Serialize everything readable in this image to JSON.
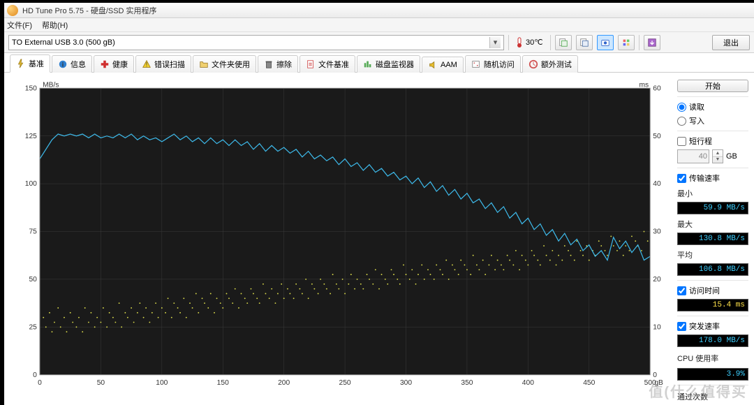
{
  "window": {
    "title": "HD Tune Pro 5.75 - 硬盘/SSD 实用程序"
  },
  "menu": {
    "file": "文件(F)",
    "help": "帮助(H)"
  },
  "toolbar": {
    "device": "TO External USB 3.0 (500 gB)",
    "temp_value": "30℃",
    "exit": "退出"
  },
  "tabs": [
    {
      "label": "基准",
      "icon": "bolt",
      "active": true
    },
    {
      "label": "信息",
      "icon": "info"
    },
    {
      "label": "健康",
      "icon": "plus"
    },
    {
      "label": "错误扫描",
      "icon": "warn"
    },
    {
      "label": "文件夹使用",
      "icon": "folder"
    },
    {
      "label": "擦除",
      "icon": "erase"
    },
    {
      "label": "文件基准",
      "icon": "filebench"
    },
    {
      "label": "磁盘监视器",
      "icon": "monitor"
    },
    {
      "label": "AAM",
      "icon": "speaker"
    },
    {
      "label": "随机访问",
      "icon": "random"
    },
    {
      "label": "额外测试",
      "icon": "extra"
    }
  ],
  "side": {
    "start": "开始",
    "read": "读取",
    "write": "写入",
    "short_stroke": "短行程",
    "stroke_value": "40",
    "stroke_unit": "GB",
    "transfer_rate": "传输速率",
    "min_label": "最小",
    "min_value": "59.9 MB/s",
    "max_label": "最大",
    "max_value": "130.8 MB/s",
    "avg_label": "平均",
    "avg_value": "106.8 MB/s",
    "access_label": "访问时间",
    "access_value": "15.4 ms",
    "burst_label": "突发速率",
    "burst_value": "178.0 MB/s",
    "cpu_label": "CPU 使用率",
    "cpu_value": "3.9%",
    "passes_label": "通过次数"
  },
  "chart": {
    "bg": "#1a1a1a",
    "grid": "#3a3a3a",
    "line_color": "#3db8e8",
    "scatter_color": "#d8d84a",
    "left_unit": "MB/s",
    "right_unit": "ms",
    "x_unit": "gB",
    "x_max": 500,
    "left_ticks": [
      0,
      25,
      50,
      75,
      100,
      125,
      150
    ],
    "right_ticks": [
      0,
      10,
      20,
      30,
      40,
      50,
      60
    ],
    "x_ticks": [
      0,
      50,
      100,
      150,
      200,
      250,
      300,
      350,
      400,
      450,
      500
    ],
    "line_y_range": [
      0,
      150
    ],
    "scatter_y_range": [
      0,
      60
    ],
    "line": [
      [
        0,
        113
      ],
      [
        5,
        118
      ],
      [
        10,
        123
      ],
      [
        15,
        126
      ],
      [
        20,
        125
      ],
      [
        25,
        126
      ],
      [
        30,
        125
      ],
      [
        35,
        126
      ],
      [
        40,
        124
      ],
      [
        45,
        126
      ],
      [
        50,
        124
      ],
      [
        55,
        125
      ],
      [
        60,
        124
      ],
      [
        65,
        126
      ],
      [
        70,
        124
      ],
      [
        75,
        126
      ],
      [
        80,
        123
      ],
      [
        85,
        125
      ],
      [
        90,
        123
      ],
      [
        95,
        124
      ],
      [
        100,
        122
      ],
      [
        105,
        124
      ],
      [
        110,
        126
      ],
      [
        115,
        123
      ],
      [
        120,
        125
      ],
      [
        125,
        122
      ],
      [
        130,
        124
      ],
      [
        135,
        121
      ],
      [
        140,
        124
      ],
      [
        145,
        121
      ],
      [
        150,
        123
      ],
      [
        155,
        120
      ],
      [
        160,
        123
      ],
      [
        165,
        120
      ],
      [
        170,
        122
      ],
      [
        175,
        118
      ],
      [
        180,
        121
      ],
      [
        185,
        117
      ],
      [
        190,
        120
      ],
      [
        195,
        117
      ],
      [
        200,
        119
      ],
      [
        205,
        116
      ],
      [
        210,
        118
      ],
      [
        215,
        114
      ],
      [
        220,
        117
      ],
      [
        225,
        113
      ],
      [
        230,
        115
      ],
      [
        235,
        112
      ],
      [
        240,
        114
      ],
      [
        245,
        110
      ],
      [
        250,
        113
      ],
      [
        255,
        109
      ],
      [
        260,
        111
      ],
      [
        265,
        107
      ],
      [
        270,
        110
      ],
      [
        275,
        106
      ],
      [
        280,
        108
      ],
      [
        285,
        104
      ],
      [
        290,
        106
      ],
      [
        295,
        102
      ],
      [
        300,
        104
      ],
      [
        305,
        100
      ],
      [
        310,
        103
      ],
      [
        315,
        98
      ],
      [
        320,
        101
      ],
      [
        325,
        96
      ],
      [
        330,
        99
      ],
      [
        335,
        94
      ],
      [
        340,
        97
      ],
      [
        345,
        92
      ],
      [
        350,
        95
      ],
      [
        355,
        90
      ],
      [
        360,
        92
      ],
      [
        365,
        87
      ],
      [
        370,
        90
      ],
      [
        375,
        85
      ],
      [
        380,
        88
      ],
      [
        385,
        82
      ],
      [
        390,
        85
      ],
      [
        395,
        79
      ],
      [
        400,
        82
      ],
      [
        405,
        76
      ],
      [
        410,
        79
      ],
      [
        415,
        73
      ],
      [
        420,
        76
      ],
      [
        425,
        70
      ],
      [
        430,
        74
      ],
      [
        435,
        68
      ],
      [
        440,
        71
      ],
      [
        445,
        65
      ],
      [
        450,
        68
      ],
      [
        455,
        62
      ],
      [
        460,
        65
      ],
      [
        465,
        60
      ],
      [
        470,
        72
      ],
      [
        475,
        66
      ],
      [
        480,
        70
      ],
      [
        485,
        64
      ],
      [
        490,
        68
      ],
      [
        495,
        60
      ],
      [
        500,
        62
      ]
    ],
    "scatter": [
      [
        3,
        12
      ],
      [
        5,
        10
      ],
      [
        8,
        13
      ],
      [
        10,
        9
      ],
      [
        12,
        11
      ],
      [
        15,
        14
      ],
      [
        17,
        10
      ],
      [
        20,
        12
      ],
      [
        22,
        9
      ],
      [
        25,
        13
      ],
      [
        27,
        11
      ],
      [
        30,
        10
      ],
      [
        32,
        12
      ],
      [
        35,
        9
      ],
      [
        37,
        14
      ],
      [
        40,
        11
      ],
      [
        42,
        13
      ],
      [
        45,
        10
      ],
      [
        47,
        12
      ],
      [
        50,
        11
      ],
      [
        52,
        14
      ],
      [
        55,
        10
      ],
      [
        57,
        13
      ],
      [
        60,
        12
      ],
      [
        62,
        11
      ],
      [
        65,
        15
      ],
      [
        67,
        10
      ],
      [
        70,
        13
      ],
      [
        72,
        12
      ],
      [
        75,
        14
      ],
      [
        77,
        11
      ],
      [
        80,
        13
      ],
      [
        82,
        15
      ],
      [
        85,
        12
      ],
      [
        87,
        14
      ],
      [
        90,
        11
      ],
      [
        92,
        13
      ],
      [
        95,
        15
      ],
      [
        97,
        12
      ],
      [
        100,
        14
      ],
      [
        103,
        13
      ],
      [
        105,
        16
      ],
      [
        108,
        12
      ],
      [
        110,
        15
      ],
      [
        113,
        14
      ],
      [
        115,
        13
      ],
      [
        118,
        16
      ],
      [
        120,
        12
      ],
      [
        123,
        15
      ],
      [
        125,
        14
      ],
      [
        128,
        17
      ],
      [
        130,
        13
      ],
      [
        133,
        16
      ],
      [
        135,
        15
      ],
      [
        138,
        14
      ],
      [
        140,
        17
      ],
      [
        143,
        13
      ],
      [
        145,
        16
      ],
      [
        148,
        15
      ],
      [
        150,
        14
      ],
      [
        153,
        17
      ],
      [
        155,
        16
      ],
      [
        158,
        15
      ],
      [
        160,
        18
      ],
      [
        163,
        14
      ],
      [
        165,
        17
      ],
      [
        168,
        16
      ],
      [
        170,
        15
      ],
      [
        173,
        18
      ],
      [
        175,
        17
      ],
      [
        178,
        16
      ],
      [
        180,
        15
      ],
      [
        183,
        19
      ],
      [
        185,
        17
      ],
      [
        188,
        16
      ],
      [
        190,
        18
      ],
      [
        193,
        15
      ],
      [
        195,
        17
      ],
      [
        198,
        19
      ],
      [
        200,
        16
      ],
      [
        203,
        18
      ],
      [
        205,
        17
      ],
      [
        208,
        16
      ],
      [
        210,
        19
      ],
      [
        213,
        18
      ],
      [
        215,
        17
      ],
      [
        218,
        20
      ],
      [
        220,
        16
      ],
      [
        223,
        19
      ],
      [
        225,
        18
      ],
      [
        228,
        17
      ],
      [
        230,
        20
      ],
      [
        233,
        19
      ],
      [
        235,
        18
      ],
      [
        238,
        17
      ],
      [
        240,
        21
      ],
      [
        243,
        19
      ],
      [
        245,
        18
      ],
      [
        248,
        20
      ],
      [
        250,
        17
      ],
      [
        253,
        19
      ],
      [
        255,
        21
      ],
      [
        258,
        18
      ],
      [
        260,
        20
      ],
      [
        263,
        19
      ],
      [
        265,
        18
      ],
      [
        268,
        21
      ],
      [
        270,
        20
      ],
      [
        273,
        19
      ],
      [
        275,
        22
      ],
      [
        278,
        18
      ],
      [
        280,
        21
      ],
      [
        283,
        20
      ],
      [
        285,
        19
      ],
      [
        288,
        22
      ],
      [
        290,
        21
      ],
      [
        293,
        20
      ],
      [
        295,
        19
      ],
      [
        298,
        23
      ],
      [
        300,
        21
      ],
      [
        303,
        20
      ],
      [
        305,
        22
      ],
      [
        308,
        19
      ],
      [
        310,
        21
      ],
      [
        313,
        23
      ],
      [
        315,
        20
      ],
      [
        318,
        22
      ],
      [
        320,
        21
      ],
      [
        323,
        20
      ],
      [
        325,
        23
      ],
      [
        328,
        22
      ],
      [
        330,
        21
      ],
      [
        333,
        24
      ],
      [
        335,
        20
      ],
      [
        338,
        23
      ],
      [
        340,
        22
      ],
      [
        343,
        21
      ],
      [
        345,
        24
      ],
      [
        348,
        23
      ],
      [
        350,
        22
      ],
      [
        353,
        21
      ],
      [
        355,
        25
      ],
      [
        358,
        23
      ],
      [
        360,
        22
      ],
      [
        363,
        24
      ],
      [
        365,
        21
      ],
      [
        368,
        23
      ],
      [
        370,
        25
      ],
      [
        373,
        22
      ],
      [
        375,
        24
      ],
      [
        378,
        23
      ],
      [
        380,
        22
      ],
      [
        383,
        25
      ],
      [
        385,
        24
      ],
      [
        388,
        23
      ],
      [
        390,
        26
      ],
      [
        393,
        22
      ],
      [
        395,
        25
      ],
      [
        398,
        24
      ],
      [
        400,
        23
      ],
      [
        403,
        26
      ],
      [
        405,
        25
      ],
      [
        408,
        24
      ],
      [
        410,
        23
      ],
      [
        413,
        27
      ],
      [
        415,
        25
      ],
      [
        418,
        24
      ],
      [
        420,
        26
      ],
      [
        423,
        23
      ],
      [
        425,
        25
      ],
      [
        428,
        24
      ],
      [
        430,
        27
      ],
      [
        433,
        26
      ],
      [
        435,
        25
      ],
      [
        438,
        24
      ],
      [
        440,
        28
      ],
      [
        443,
        26
      ],
      [
        445,
        25
      ],
      [
        448,
        27
      ],
      [
        450,
        24
      ],
      [
        453,
        26
      ],
      [
        455,
        25
      ],
      [
        458,
        28
      ],
      [
        460,
        27
      ],
      [
        463,
        26
      ],
      [
        465,
        25
      ],
      [
        468,
        29
      ],
      [
        470,
        27
      ],
      [
        473,
        26
      ],
      [
        475,
        28
      ],
      [
        478,
        25
      ],
      [
        480,
        27
      ],
      [
        483,
        26
      ],
      [
        485,
        29
      ],
      [
        488,
        28
      ],
      [
        490,
        27
      ],
      [
        493,
        26
      ],
      [
        495,
        30
      ],
      [
        498,
        28
      ]
    ]
  },
  "watermark": "值(什么值得买"
}
